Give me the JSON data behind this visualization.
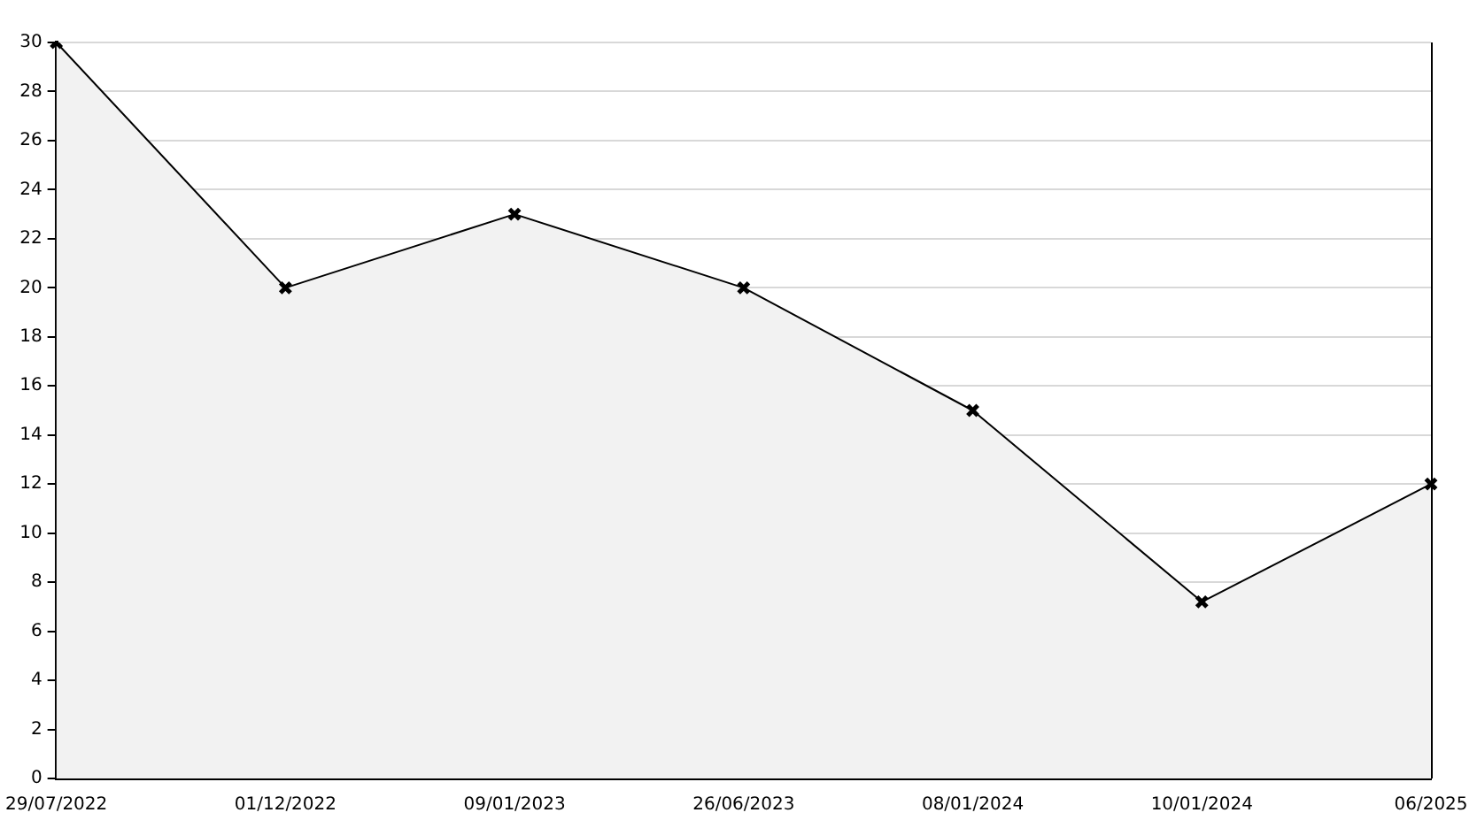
{
  "chart_data": {
    "type": "area",
    "categories": [
      "29/07/2022",
      "01/12/2022",
      "09/01/2023",
      "26/06/2023",
      "08/01/2024",
      "10/01/2024",
      "06/2025"
    ],
    "series": [
      {
        "color": "#000000",
        "values": [
          30,
          20,
          23,
          20,
          15,
          7.2,
          12
        ]
      }
    ],
    "ylim": [
      0,
      30
    ],
    "yticks": [
      0,
      2,
      4,
      6,
      8,
      10,
      12,
      14,
      16,
      18,
      20,
      22,
      24,
      26,
      28,
      30
    ],
    "grid": "y",
    "legend": false,
    "marker": "cross",
    "line_style": "solid"
  }
}
